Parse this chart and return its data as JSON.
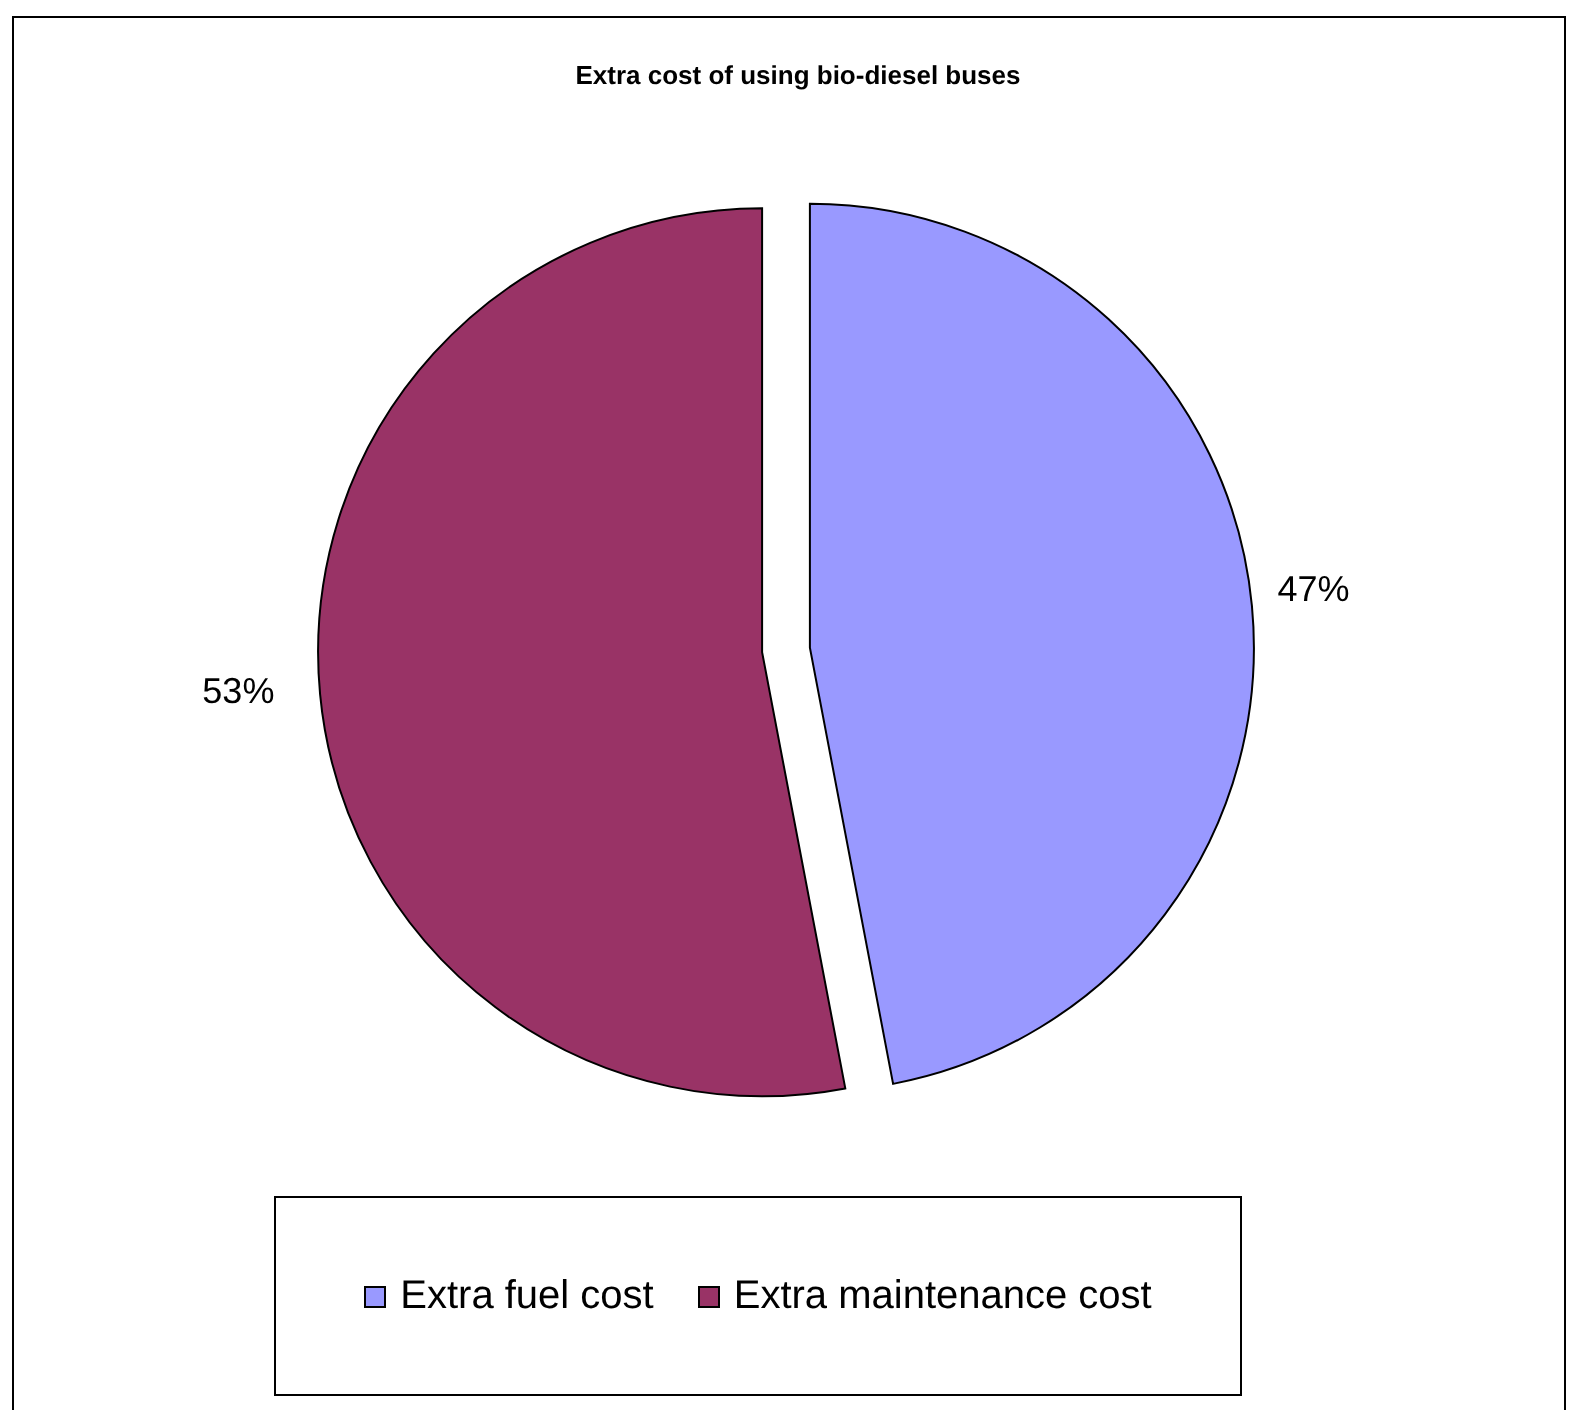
{
  "chart_data": {
    "type": "pie",
    "title": "Extra cost of using bio-diesel buses",
    "categories": [
      "Extra fuel cost",
      "Extra maintenance cost"
    ],
    "values": [
      47,
      53
    ],
    "colors": [
      "#9999ff",
      "#993366"
    ],
    "value_labels": [
      "47%",
      "53%"
    ],
    "legend": "bottom"
  }
}
